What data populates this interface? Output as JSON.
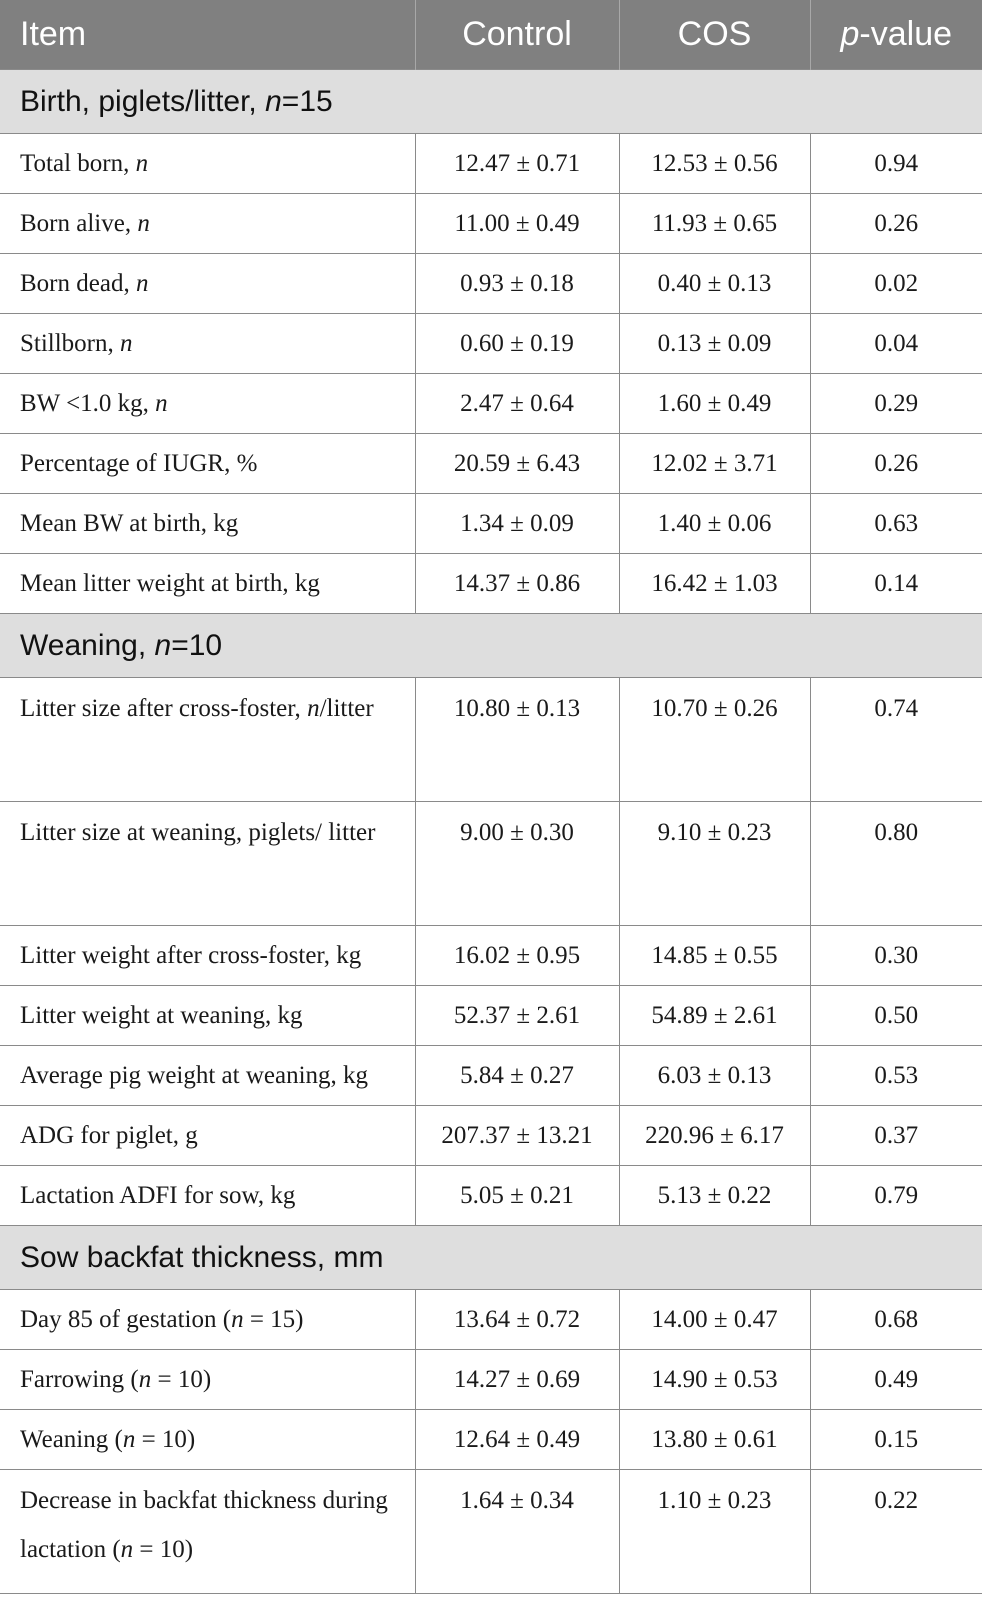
{
  "headers": [
    "Item",
    "Control",
    "COS",
    "p",
    "-value"
  ],
  "sections": [
    {
      "title_a": "Birth, piglets/litter, ",
      "title_i": "n",
      "title_b": "=15",
      "rows": [
        {
          "label": "Total born, ",
          "label_i": "n",
          "label_b": "",
          "control": "12.47 ± 0.71",
          "cos": "12.53 ± 0.56",
          "p": "0.94"
        },
        {
          "label": "Born alive, ",
          "label_i": "n",
          "label_b": "",
          "control": "11.00 ± 0.49",
          "cos": "11.93 ± 0.65",
          "p": "0.26"
        },
        {
          "label": "Born dead, ",
          "label_i": "n",
          "label_b": "",
          "control": "0.93 ± 0.18",
          "cos": "0.40 ± 0.13",
          "p": "0.02"
        },
        {
          "label": "Stillborn, ",
          "label_i": "n",
          "label_b": "",
          "control": "0.60 ± 0.19",
          "cos": "0.13 ± 0.09",
          "p": "0.04"
        },
        {
          "label": "BW <1.0 kg, ",
          "label_i": "n",
          "label_b": "",
          "control": "2.47 ± 0.64",
          "cos": "1.60 ± 0.49",
          "p": "0.29"
        },
        {
          "label": "Percentage of IUGR, %",
          "label_i": "",
          "label_b": "",
          "control": "20.59 ± 6.43",
          "cos": "12.02 ± 3.71",
          "p": "0.26"
        },
        {
          "label": "Mean BW at birth, kg",
          "label_i": "",
          "label_b": "",
          "control": "1.34 ± 0.09",
          "cos": "1.40 ± 0.06",
          "p": "0.63"
        },
        {
          "label": "Mean litter weight at birth, kg",
          "label_i": "",
          "label_b": "",
          "control": "14.37 ± 0.86",
          "cos": "16.42 ± 1.03",
          "p": "0.14"
        }
      ]
    },
    {
      "title_a": "Weaning, ",
      "title_i": "n",
      "title_b": "=10",
      "rows": [
        {
          "label": "Litter size after cross-foster, ",
          "label_i": "n",
          "label_b": "/litter",
          "control": "10.80 ± 0.13",
          "cos": "10.70 ± 0.26",
          "p": "0.74",
          "tall": true
        },
        {
          "label": "Litter size at weaning, piglets/ litter",
          "label_i": "",
          "label_b": "",
          "control": "9.00 ± 0.30",
          "cos": "9.10 ± 0.23",
          "p": "0.80",
          "tall": true
        },
        {
          "label": "Litter weight after cross-foster, kg",
          "label_i": "",
          "label_b": "",
          "control": "16.02 ± 0.95",
          "cos": "14.85 ± 0.55",
          "p": "0.30"
        },
        {
          "label": "Litter weight at weaning, kg",
          "label_i": "",
          "label_b": "",
          "control": "52.37 ± 2.61",
          "cos": "54.89 ± 2.61",
          "p": "0.50"
        },
        {
          "label": "Average pig weight at weaning, kg",
          "label_i": "",
          "label_b": "",
          "control": "5.84 ± 0.27",
          "cos": "6.03 ± 0.13",
          "p": "0.53"
        },
        {
          "label": "ADG for piglet, g",
          "label_i": "",
          "label_b": "",
          "control": "207.37 ± 13.21",
          "cos": "220.96 ± 6.17",
          "p": "0.37"
        },
        {
          "label": "Lactation ADFI for sow, kg",
          "label_i": "",
          "label_b": "",
          "control": "5.05 ± 0.21",
          "cos": "5.13 ± 0.22",
          "p": "0.79"
        }
      ]
    },
    {
      "title_a": "Sow backfat thickness, mm",
      "title_i": "",
      "title_b": "",
      "rows": [
        {
          "label": "Day 85 of gestation (",
          "label_i": "n",
          "label_b": " = 15)",
          "control": "13.64 ± 0.72",
          "cos": "14.00 ± 0.47",
          "p": "0.68"
        },
        {
          "label": "Farrowing (",
          "label_i": "n",
          "label_b": " = 10)",
          "control": "14.27 ± 0.69",
          "cos": "14.90 ± 0.53",
          "p": "0.49"
        },
        {
          "label": "Weaning (",
          "label_i": "n",
          "label_b": " = 10)",
          "control": "12.64 ± 0.49",
          "cos": "13.80 ± 0.61",
          "p": "0.15"
        },
        {
          "label": "Decrease in backfat thickness during lactation (",
          "label_i": "n",
          "label_b": " = 10)",
          "control": "1.64 ± 0.34",
          "cos": "1.10 ± 0.23",
          "p": "0.22",
          "tall": true
        }
      ]
    }
  ]
}
